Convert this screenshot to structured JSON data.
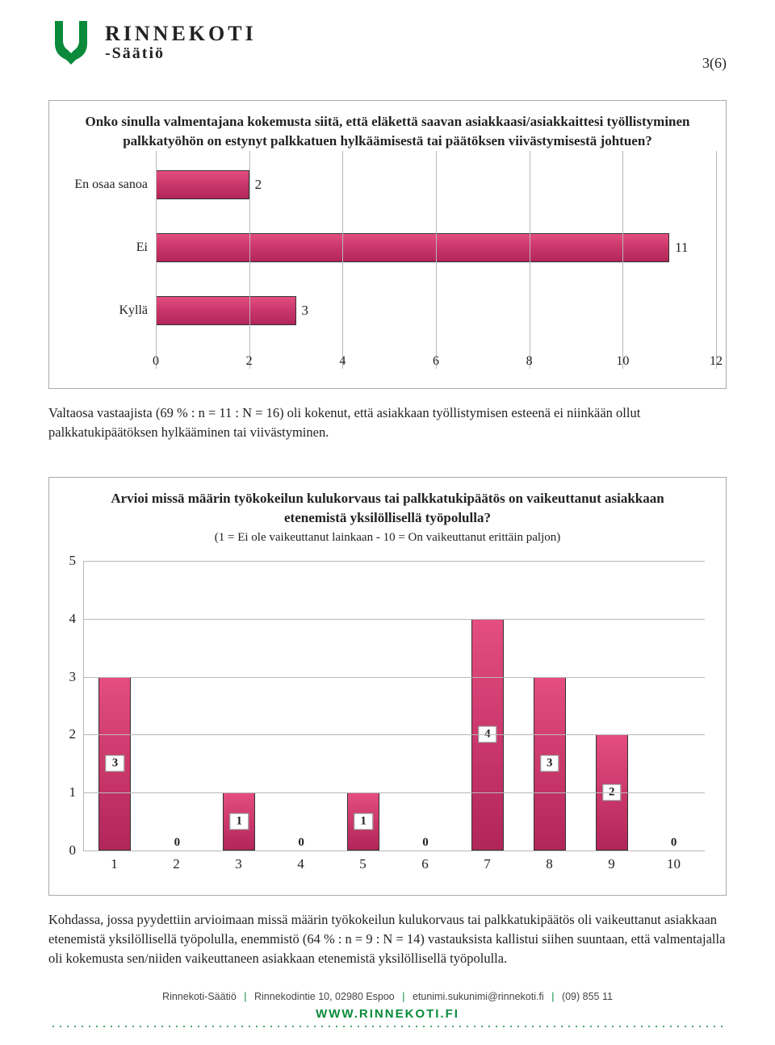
{
  "brand": {
    "main": "RINNEKOTI",
    "sub": "-Säätiö",
    "logo_color": "#0a8a3a"
  },
  "page_number": "3(6)",
  "chart1": {
    "type": "horizontal_bar",
    "title": "Onko sinulla valmentajana kokemusta siitä, että eläkettä saavan asiakkaasi/asiakkaittesi työllistyminen palkkatyöhön on estynyt palkkatuen hylkäämisestä tai päätöksen viivästymisestä johtuen?",
    "categories": [
      "En osaa sanoa",
      "Ei",
      "Kyllä"
    ],
    "values": [
      2,
      11,
      3
    ],
    "xmin": 0,
    "xmax": 12,
    "xtick_step": 2,
    "bar_color": "#c9366a",
    "grid_color": "#b8b8b8"
  },
  "para1": "Valtaosa vastaajista (69 % : n = 11 : N = 16) oli kokenut, että asiakkaan työllistymisen esteenä ei niinkään ollut palkkatukipäätöksen hylkääminen tai viivästyminen.",
  "chart2": {
    "type": "vertical_bar",
    "title": "Arvioi missä määrin työkokeilun kulukorvaus tai palkkatukipäätös on vaikeuttanut asiakkaan etenemistä yksilöllisellä työpolulla?",
    "subtitle": "(1 = Ei ole vaikeuttanut lainkaan - 10 = On vaikeuttanut erittäin paljon)",
    "x_labels": [
      "1",
      "2",
      "3",
      "4",
      "5",
      "6",
      "7",
      "8",
      "9",
      "10"
    ],
    "values": [
      3,
      0,
      1,
      0,
      1,
      0,
      4,
      3,
      2,
      0
    ],
    "ymin": 0,
    "ymax": 5,
    "ytick_step": 1,
    "bar_color": "#c9366a",
    "grid_color": "#b8b8b8"
  },
  "para2": "Kohdassa, jossa pyydettiin arvioimaan missä määrin työkokeilun kulukorvaus tai palkkatukipäätös oli vaikeuttanut asiakkaan etenemistä yksilöllisellä työpolulla, enemmistö (64 % : n = 9 : N = 14) vastauksista kallistui siihen suuntaan, että valmentajalla oli kokemusta sen/niiden vaikeuttaneen asiakkaan etenemistä yksilöllisellä työpolulla.",
  "footer": {
    "org": "Rinnekoti-Säätiö",
    "address": "Rinnekodintie 10, 02980 Espoo",
    "email": "etunimi.sukunimi@rinnekoti.fi",
    "phone": "(09) 855 11",
    "url": "WWW.RINNEKOTI.FI",
    "sep_color": "#0a8a3a"
  }
}
